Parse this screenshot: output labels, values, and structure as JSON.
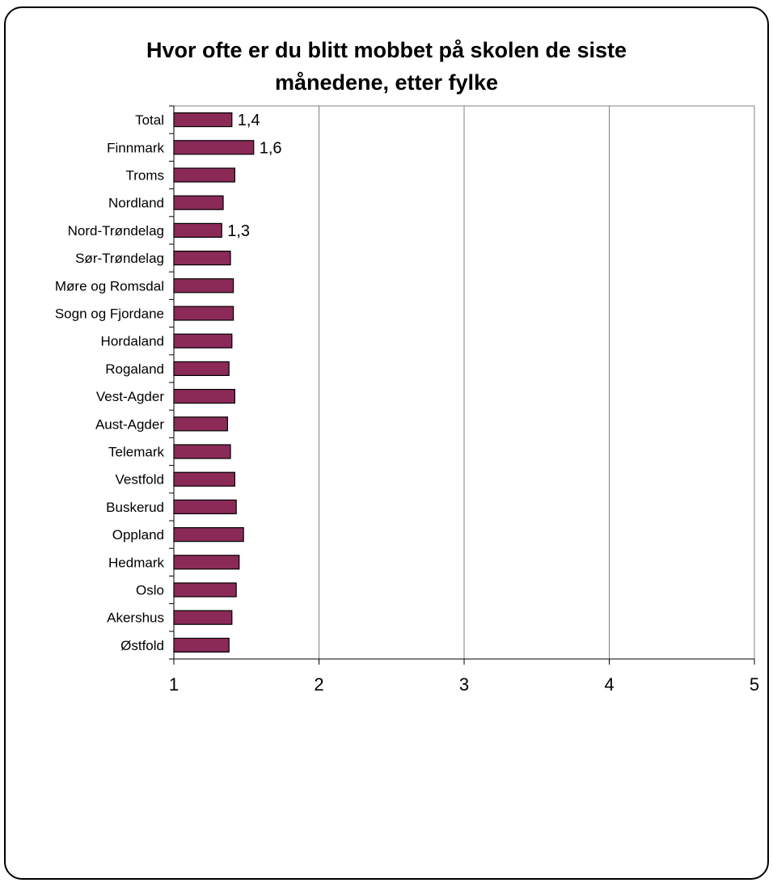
{
  "chart_data": {
    "type": "bar",
    "orientation": "horizontal",
    "title_lines": [
      "Hvor ofte er du blitt mobbet på skolen de siste",
      "månedene, etter fylke"
    ],
    "xlim": [
      1,
      5
    ],
    "xticks": [
      "1",
      "2",
      "3",
      "4",
      "5"
    ],
    "grid": true,
    "bar_color": "#8b2a57",
    "categories": [
      "Total",
      "Finnmark",
      "Troms",
      "Nordland",
      "Nord-Trøndelag",
      "Sør-Trøndelag",
      "Møre og Romsdal",
      "Sogn og Fjordane",
      "Hordaland",
      "Rogaland",
      "Vest-Agder",
      "Aust-Agder",
      "Telemark",
      "Vestfold",
      "Buskerud",
      "Oppland",
      "Hedmark",
      "Oslo",
      "Akershus",
      "Østfold"
    ],
    "values": [
      1.4,
      1.55,
      1.42,
      1.34,
      1.33,
      1.39,
      1.41,
      1.41,
      1.4,
      1.38,
      1.42,
      1.37,
      1.39,
      1.42,
      1.43,
      1.48,
      1.45,
      1.43,
      1.4,
      1.38
    ],
    "data_labels": [
      "1,4",
      "1,6",
      "",
      "",
      "1,3",
      "",
      "",
      "",
      "",
      "",
      "",
      "",
      "",
      "",
      "",
      "",
      "",
      "",
      "",
      ""
    ]
  }
}
